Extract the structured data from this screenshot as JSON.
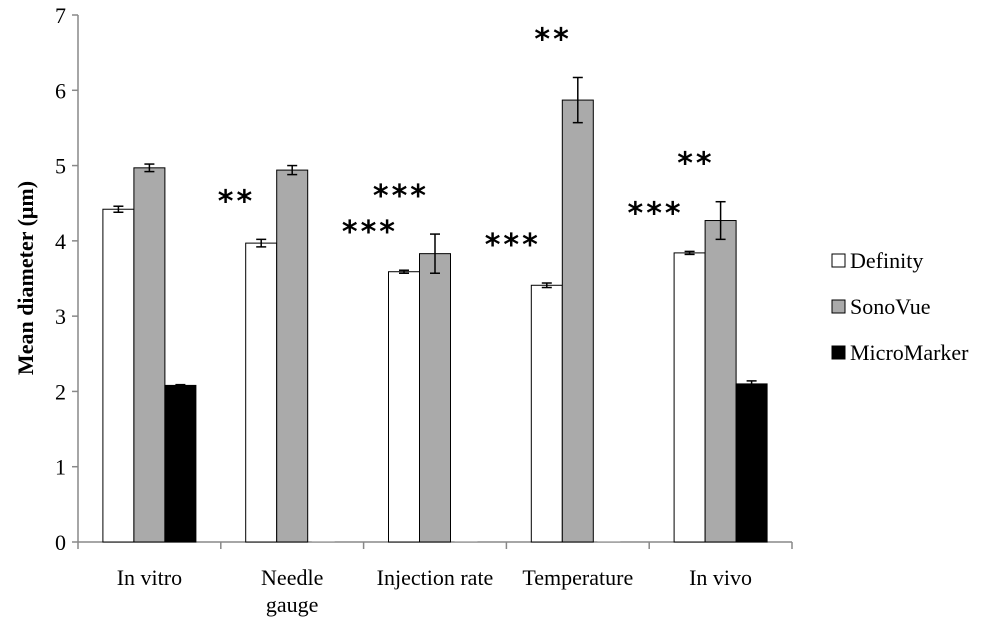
{
  "chart_data": {
    "type": "bar",
    "ylabel": "Mean diameter (μm)",
    "xlabel": "",
    "ylim": [
      0,
      7
    ],
    "yticks": [
      0,
      1,
      2,
      3,
      4,
      5,
      6,
      7
    ],
    "categories": [
      "In vitro",
      "Needle gauge",
      "Injection rate",
      "Temperature",
      "In vivo"
    ],
    "category_label_lines": [
      [
        "In vitro"
      ],
      [
        "Needle",
        "gauge"
      ],
      [
        "Injection rate"
      ],
      [
        "Temperature"
      ],
      [
        "In vivo"
      ]
    ],
    "legend_position": "right",
    "grid": false,
    "series": [
      {
        "name": "Definity",
        "color": "#ffffff",
        "values": [
          4.42,
          3.97,
          3.59,
          3.41,
          3.84
        ],
        "errors": [
          0.04,
          0.05,
          0.02,
          0.03,
          0.02
        ]
      },
      {
        "name": "SonoVue",
        "color": "#aaaaaa",
        "values": [
          4.97,
          4.94,
          3.83,
          5.87,
          4.27
        ],
        "errors": [
          0.05,
          0.06,
          0.26,
          0.3,
          0.25
        ]
      },
      {
        "name": "MicroMarker",
        "color": "#000000",
        "values": [
          2.08,
          0,
          0,
          0,
          2.1
        ],
        "errors": [
          0.01,
          0,
          0,
          0,
          0.04
        ]
      }
    ],
    "significance": [
      {
        "category": 1,
        "series": 0,
        "label": "**"
      },
      {
        "category": 2,
        "series": 0,
        "label": "***"
      },
      {
        "category": 2,
        "series": 1,
        "label": "***"
      },
      {
        "category": 3,
        "series": 0,
        "label": "***"
      },
      {
        "category": 3,
        "series": 1,
        "label": "**"
      },
      {
        "category": 4,
        "series": 0,
        "label": "***"
      },
      {
        "category": 4,
        "series": 1,
        "label": "**"
      }
    ]
  }
}
